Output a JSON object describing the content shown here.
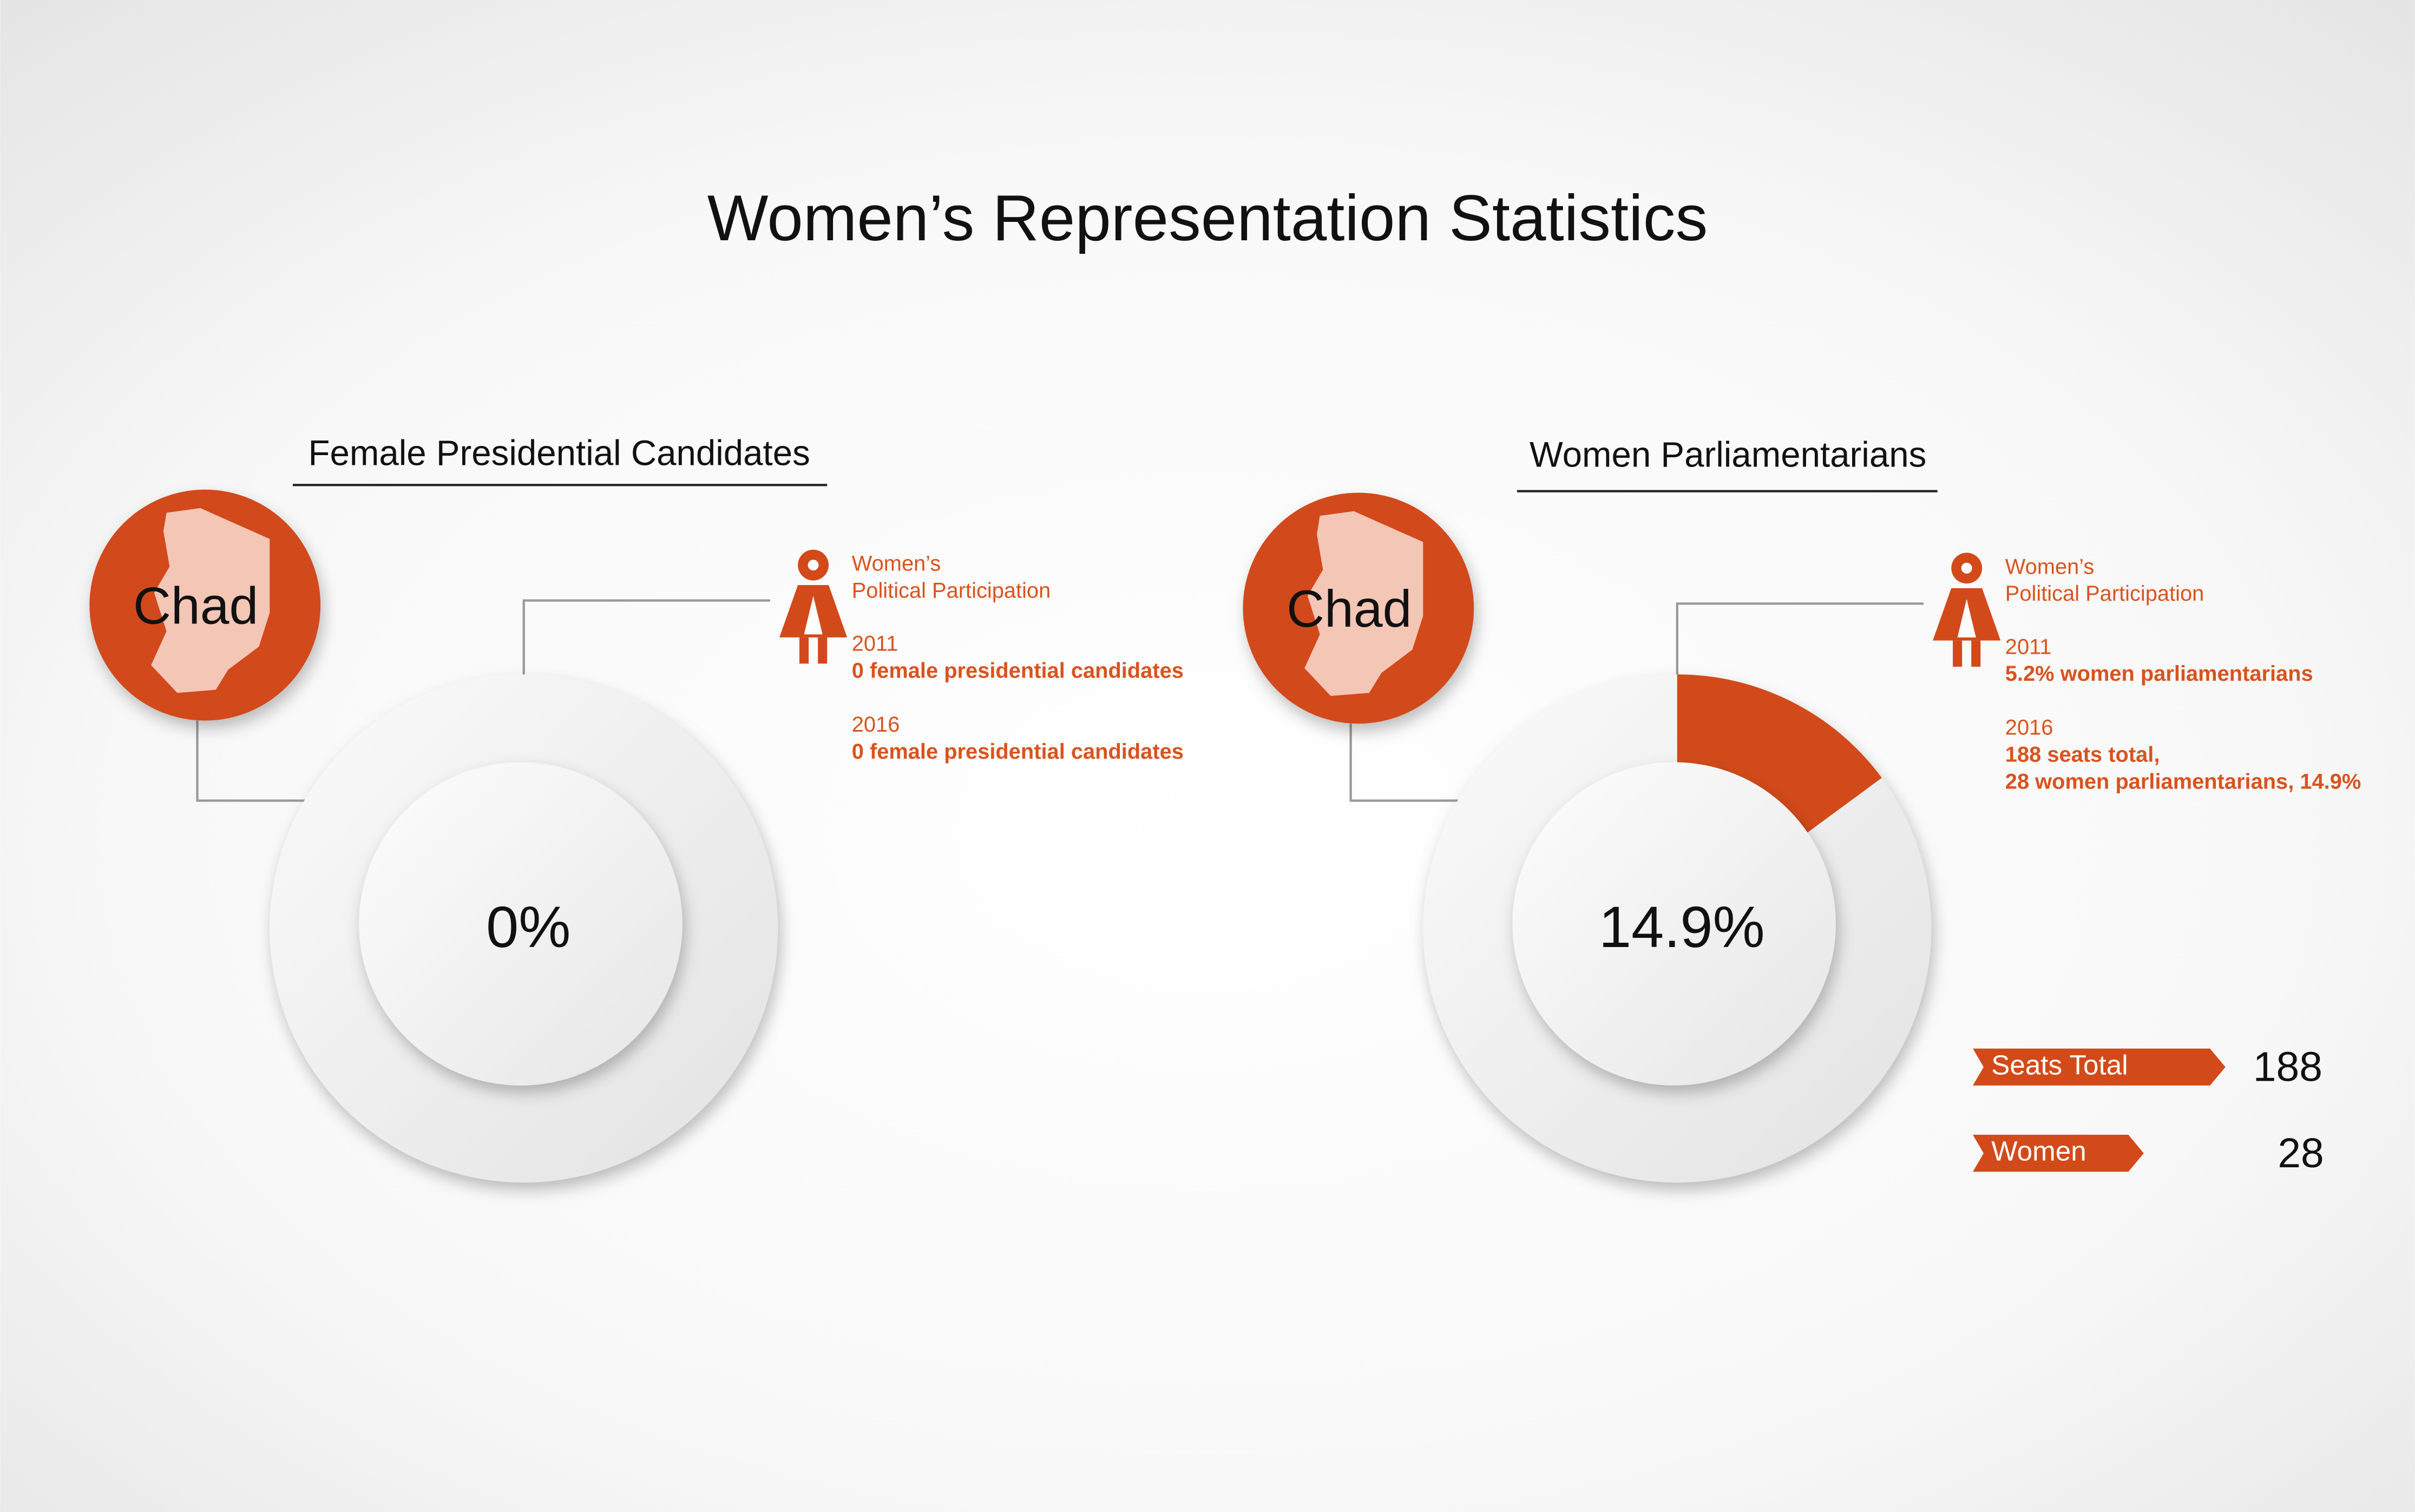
{
  "title": "Women’s Representation Statistics",
  "chart_data": [
    {
      "type": "donut",
      "title": "Female Presidential Candidates",
      "country": "Chad",
      "values": [
        0
      ],
      "value_labels": [
        "0%"
      ],
      "color": "#d24a1a",
      "notes": {
        "heading": [
          "Women’s",
          "Political Participation"
        ],
        "entries": [
          {
            "year": "2011",
            "text": [
              "0 female presidential candidates"
            ]
          },
          {
            "year": "2016",
            "text": [
              "0 female presidential candidates"
            ]
          }
        ]
      }
    },
    {
      "type": "donut",
      "title": "Women Parliamentarians",
      "country": "Chad",
      "values": [
        14.9
      ],
      "value_labels": [
        "14.9%"
      ],
      "color": "#d24a1a",
      "notes": {
        "heading": [
          "Women’s",
          "Political Participation"
        ],
        "entries": [
          {
            "year": "2011",
            "text": [
              "5.2% women parliamentarians"
            ]
          },
          {
            "year": "2016",
            "text": [
              "188 seats total,",
              "28 women parliamentarians, 14.9%"
            ]
          }
        ]
      },
      "bars": {
        "categories": [
          "Seats Total",
          "Women"
        ],
        "values": [
          188,
          28
        ]
      }
    }
  ]
}
